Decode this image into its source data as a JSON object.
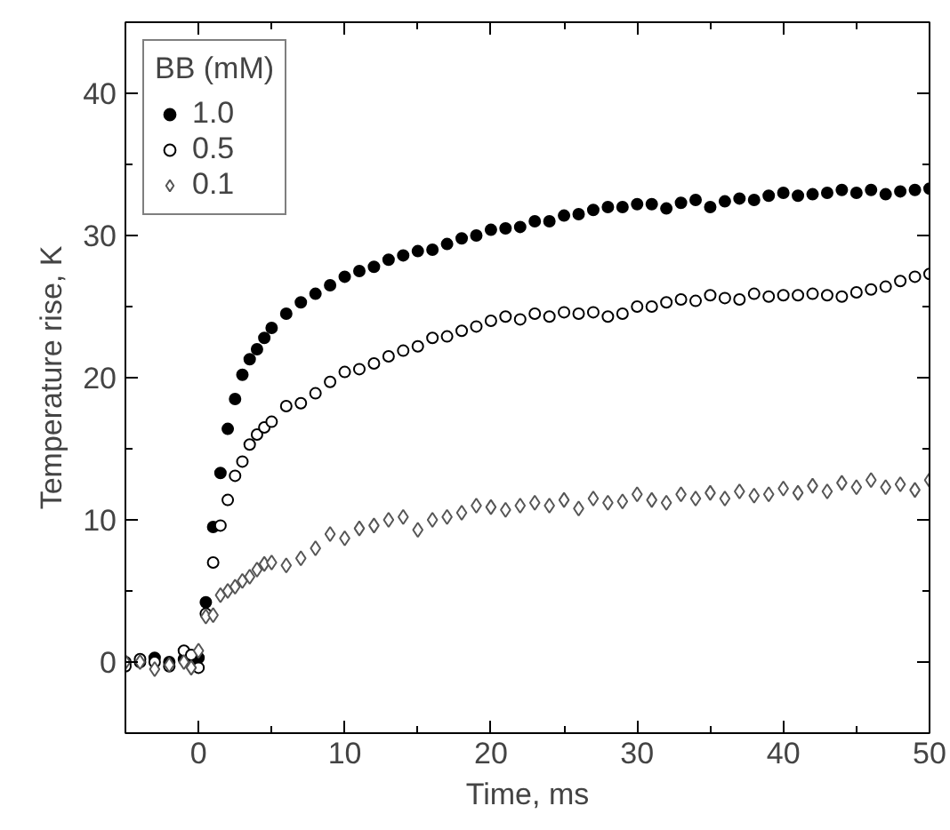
{
  "chart_data": {
    "type": "scatter",
    "xlabel": "Time, ms",
    "ylabel": "Temperature rise, K",
    "legend_title": "BB (mM)",
    "legend": "top left",
    "grid": false,
    "xlim": [
      -5,
      50
    ],
    "xticks": [
      0,
      10,
      20,
      30,
      40,
      50
    ],
    "ylim": [
      -5,
      45
    ],
    "yticks": [
      0,
      10,
      20,
      30,
      40
    ],
    "x": [
      -5,
      -4,
      -3,
      -2,
      -1,
      -0.5,
      0,
      0.5,
      1,
      1.5,
      2,
      2.5,
      3,
      3.5,
      4,
      4.5,
      5,
      6,
      7,
      8,
      9,
      10,
      11,
      12,
      13,
      14,
      15,
      16,
      17,
      18,
      19,
      20,
      21,
      22,
      23,
      24,
      25,
      26,
      27,
      28,
      29,
      30,
      31,
      32,
      33,
      34,
      35,
      36,
      37,
      38,
      39,
      40,
      41,
      42,
      43,
      44,
      45,
      46,
      47,
      48,
      49,
      50
    ],
    "series": [
      {
        "name": "1.0",
        "color": "#000000",
        "marker": "circle",
        "values": [
          0,
          0,
          0.3,
          0,
          0.2,
          0,
          0.3,
          4.2,
          9.5,
          13.3,
          16.4,
          18.5,
          20.2,
          21.3,
          22,
          22.8,
          23.5,
          24.5,
          25.3,
          25.9,
          26.5,
          27.1,
          27.5,
          27.8,
          28.3,
          28.6,
          28.9,
          29.0,
          29.4,
          29.8,
          30.0,
          30.4,
          30.5,
          30.6,
          31.0,
          31.0,
          31.4,
          31.5,
          31.8,
          32.0,
          32.0,
          32.2,
          32.2,
          31.9,
          32.3,
          32.5,
          32.0,
          32.4,
          32.6,
          32.5,
          32.8,
          33.0,
          32.8,
          32.9,
          33.0,
          33.2,
          33.0,
          33.2,
          32.9,
          33.1,
          33.2,
          33.3
        ]
      },
      {
        "name": "0.5",
        "color": "#000000",
        "marker": "circle",
        "values": [
          -0.3,
          0.2,
          0,
          -0.3,
          0.8,
          0.5,
          -0.4,
          3.4,
          7.0,
          9.6,
          11.4,
          13.1,
          14.1,
          15.3,
          16.0,
          16.5,
          16.9,
          18.0,
          18.2,
          18.9,
          19.7,
          20.4,
          20.6,
          21.0,
          21.5,
          21.9,
          22.2,
          22.8,
          22.9,
          23.3,
          23.6,
          24.0,
          24.3,
          24.1,
          24.5,
          24.3,
          24.6,
          24.5,
          24.6,
          24.3,
          24.5,
          25.0,
          25.0,
          25.3,
          25.5,
          25.4,
          25.8,
          25.6,
          25.5,
          25.9,
          25.7,
          25.8,
          25.8,
          25.9,
          25.8,
          25.7,
          26.0,
          26.2,
          26.4,
          26.8,
          27.1,
          27.3
        ]
      },
      {
        "name": "0.1",
        "color": "#555555",
        "marker": "diamond",
        "values": [
          0,
          0,
          -0.5,
          -0.2,
          0,
          -0.4,
          0.8,
          3.2,
          3.3,
          4.7,
          5.0,
          5.3,
          5.7,
          6.0,
          6.5,
          6.9,
          7.0,
          6.8,
          7.3,
          8.0,
          9.0,
          8.7,
          9.4,
          9.6,
          10.0,
          10.2,
          9.3,
          10.0,
          10.2,
          10.5,
          11.0,
          10.9,
          10.7,
          11.0,
          11.2,
          11.0,
          11.4,
          10.8,
          11.5,
          11.2,
          11.3,
          11.8,
          11.4,
          11.2,
          11.8,
          11.5,
          11.9,
          11.5,
          12.0,
          11.7,
          11.8,
          12.2,
          11.9,
          12.4,
          12.0,
          12.6,
          12.3,
          12.8,
          12.3,
          12.5,
          12.1,
          12.8
        ]
      }
    ]
  }
}
